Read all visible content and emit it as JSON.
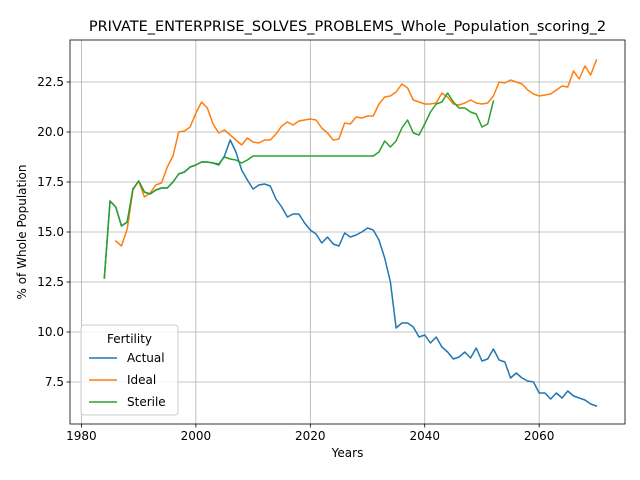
{
  "chart_data": {
    "type": "line",
    "title": "PRIVATE_ENTERPRISE_SOLVES_PROBLEMS_Whole_Population_scoring_2",
    "xlabel": "Years",
    "ylabel": "% of Whole Population",
    "xlim": [
      1978,
      2075
    ],
    "ylim": [
      5.4,
      24.6
    ],
    "xticks": [
      1980,
      2000,
      2020,
      2040,
      2060
    ],
    "xtick_labels": [
      "1980",
      "2000",
      "2020",
      "2040",
      "2060"
    ],
    "yticks": [
      7.5,
      10.0,
      12.5,
      15.0,
      17.5,
      20.0,
      22.5
    ],
    "ytick_labels": [
      "7.5",
      "10.0",
      "12.5",
      "15.0",
      "17.5",
      "20.0",
      "22.5"
    ],
    "grid": true,
    "legend": {
      "title": "Fertility",
      "position": "lower-left"
    },
    "series": [
      {
        "name": "Actual",
        "color": "#1f77b4",
        "x": [
          1984,
          1985,
          1986,
          1987,
          1988,
          1989,
          1990,
          1991,
          1992,
          1993,
          1994,
          1995,
          1996,
          1997,
          1998,
          1999,
          2000,
          2001,
          2002,
          2003,
          2004,
          2005,
          2006,
          2007,
          2008,
          2009,
          2010,
          2011,
          2012,
          2013,
          2014,
          2015,
          2016,
          2017,
          2018,
          2019,
          2020,
          2021,
          2022,
          2023,
          2024,
          2025,
          2026,
          2027,
          2028,
          2029,
          2030,
          2031,
          2032,
          2033,
          2034,
          2035,
          2036,
          2037,
          2038,
          2039,
          2040,
          2041,
          2042,
          2043,
          2044,
          2045,
          2046,
          2047,
          2048,
          2049,
          2050,
          2051,
          2052,
          2053,
          2054,
          2055,
          2056,
          2057,
          2058,
          2059,
          2060,
          2061,
          2062,
          2063,
          2064,
          2065,
          2066,
          2067,
          2068,
          2069,
          2070
        ],
        "values": [
          12.7,
          16.55,
          16.25,
          15.3,
          15.5,
          17.15,
          17.55,
          17.0,
          16.9,
          17.1,
          17.2,
          17.2,
          17.5,
          17.9,
          18.0,
          18.25,
          18.35,
          18.5,
          18.5,
          18.45,
          18.35,
          18.8,
          19.6,
          19.0,
          18.1,
          17.6,
          17.15,
          17.35,
          17.4,
          17.3,
          16.65,
          16.25,
          15.75,
          15.9,
          15.9,
          15.45,
          15.1,
          14.9,
          14.45,
          14.75,
          14.4,
          14.3,
          14.95,
          14.75,
          14.85,
          15.0,
          15.2,
          15.1,
          14.6,
          13.7,
          12.5,
          10.2,
          10.45,
          10.45,
          10.25,
          9.75,
          9.85,
          9.45,
          9.75,
          9.25,
          9.0,
          8.65,
          8.75,
          9.0,
          8.7,
          9.2,
          8.55,
          8.65,
          9.15,
          8.6,
          8.5,
          7.7,
          7.95,
          7.7,
          7.55,
          7.5,
          6.95,
          6.95,
          6.65,
          6.95,
          6.7,
          7.05,
          6.8,
          6.7,
          6.6,
          6.4,
          6.3
        ]
      },
      {
        "name": "Ideal",
        "color": "#ff7f0e",
        "x": [
          1986,
          1987,
          1988,
          1989,
          1990,
          1991,
          1992,
          1993,
          1994,
          1995,
          1996,
          1997,
          1998,
          1999,
          2000,
          2001,
          2002,
          2003,
          2004,
          2005,
          2006,
          2007,
          2008,
          2009,
          2010,
          2011,
          2012,
          2013,
          2014,
          2015,
          2016,
          2017,
          2018,
          2019,
          2020,
          2021,
          2022,
          2023,
          2024,
          2025,
          2026,
          2027,
          2028,
          2029,
          2030,
          2031,
          2032,
          2033,
          2034,
          2035,
          2036,
          2037,
          2038,
          2039,
          2040,
          2041,
          2042,
          2043,
          2044,
          2045,
          2046,
          2047,
          2048,
          2049,
          2050,
          2051,
          2052,
          2053,
          2054,
          2055,
          2056,
          2057,
          2058,
          2059,
          2060,
          2061,
          2062,
          2063,
          2064,
          2065,
          2066,
          2067,
          2068,
          2069,
          2070
        ],
        "values": [
          14.55,
          14.3,
          15.15,
          17.1,
          17.55,
          16.75,
          16.95,
          17.35,
          17.45,
          18.25,
          18.8,
          20.0,
          20.05,
          20.25,
          20.95,
          21.5,
          21.2,
          20.4,
          19.95,
          20.1,
          19.85,
          19.6,
          19.35,
          19.7,
          19.5,
          19.45,
          19.6,
          19.6,
          19.9,
          20.3,
          20.5,
          20.35,
          20.55,
          20.6,
          20.65,
          20.6,
          20.2,
          19.95,
          19.6,
          19.65,
          20.45,
          20.4,
          20.75,
          20.7,
          20.8,
          20.8,
          21.4,
          21.75,
          21.8,
          22.0,
          22.4,
          22.2,
          21.6,
          21.5,
          21.4,
          21.4,
          21.45,
          21.95,
          21.75,
          21.4,
          21.35,
          21.45,
          21.6,
          21.45,
          21.4,
          21.45,
          21.8,
          22.5,
          22.45,
          22.6,
          22.5,
          22.4,
          22.1,
          21.9,
          21.8,
          21.85,
          21.9,
          22.1,
          22.3,
          22.25,
          23.05,
          22.65,
          23.3,
          22.85,
          23.6
        ]
      },
      {
        "name": "Sterile",
        "color": "#2ca02c",
        "x": [
          1984,
          1985,
          1986,
          1987,
          1988,
          1989,
          1990,
          1991,
          1992,
          1993,
          1994,
          1995,
          1996,
          1997,
          1998,
          1999,
          2000,
          2001,
          2002,
          2003,
          2004,
          2005,
          2006,
          2007,
          2008,
          2009,
          2010,
          2011,
          2012,
          2013,
          2014,
          2015,
          2016,
          2017,
          2018,
          2019,
          2020,
          2021,
          2022,
          2023,
          2024,
          2025,
          2026,
          2027,
          2028,
          2029,
          2030,
          2031,
          2032,
          2033,
          2034,
          2035,
          2036,
          2037,
          2038,
          2039,
          2040,
          2041,
          2042,
          2043,
          2044,
          2045,
          2046,
          2047,
          2048,
          2049,
          2050,
          2051,
          2052
        ],
        "values": [
          12.7,
          16.55,
          16.25,
          15.3,
          15.5,
          17.15,
          17.55,
          17.0,
          16.9,
          17.1,
          17.2,
          17.2,
          17.5,
          17.9,
          18.0,
          18.25,
          18.35,
          18.5,
          18.5,
          18.45,
          18.4,
          18.75,
          18.65,
          18.6,
          18.45,
          18.6,
          18.8,
          18.8,
          18.8,
          18.8,
          18.8,
          18.8,
          18.8,
          18.8,
          18.8,
          18.8,
          18.8,
          18.8,
          18.8,
          18.8,
          18.8,
          18.8,
          18.8,
          18.8,
          18.8,
          18.8,
          18.8,
          18.8,
          19.0,
          19.55,
          19.25,
          19.55,
          20.2,
          20.6,
          19.95,
          19.85,
          20.4,
          21.0,
          21.4,
          21.5,
          21.95,
          21.5,
          21.2,
          21.2,
          21.0,
          20.9,
          20.25,
          20.4,
          21.55
        ]
      }
    ]
  }
}
